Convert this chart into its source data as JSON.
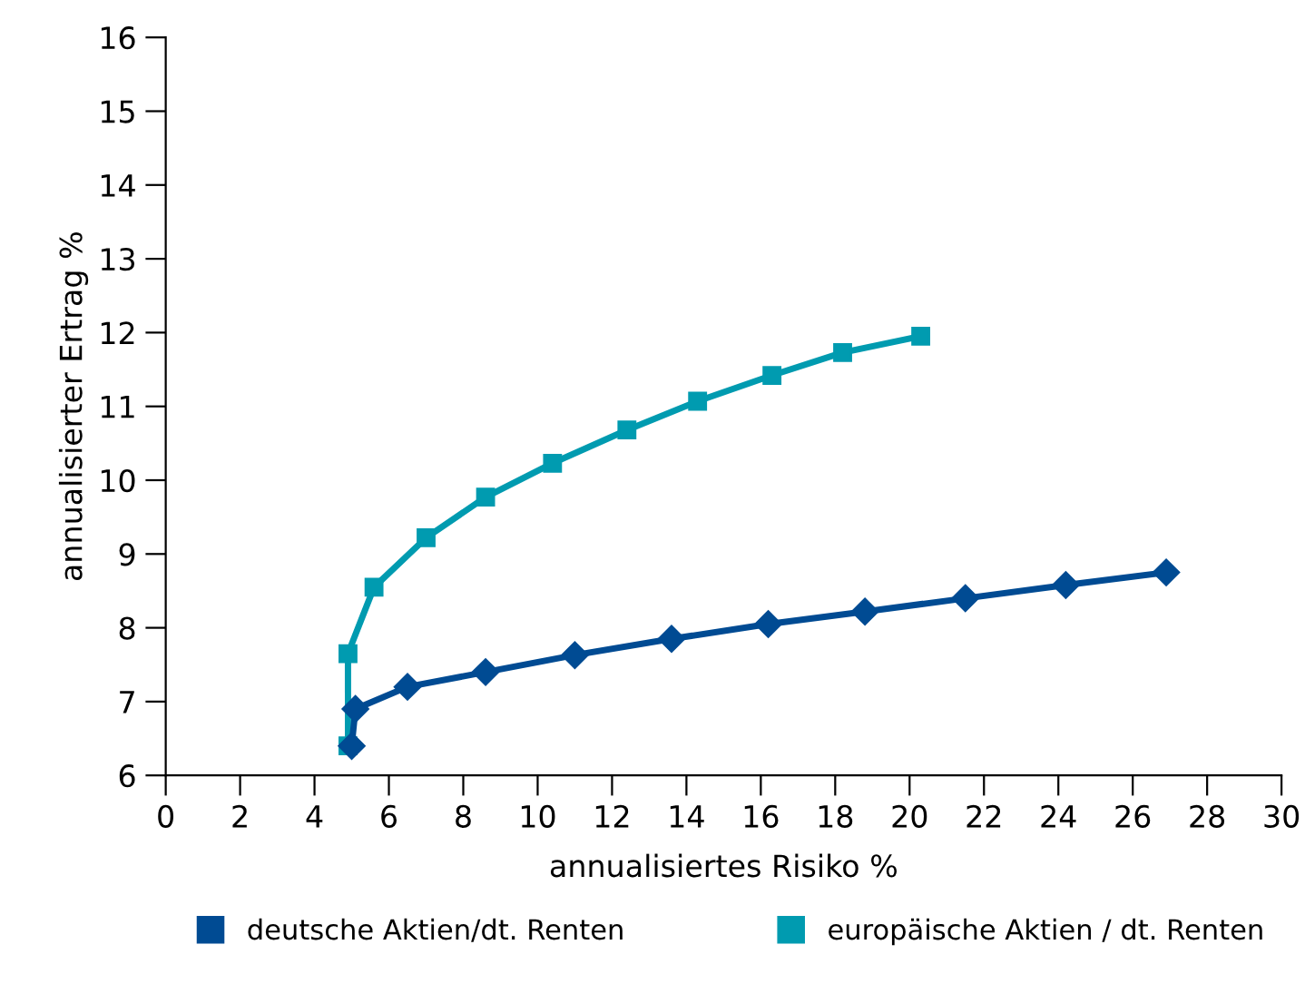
{
  "chart_data": {
    "type": "line",
    "xlabel": "annualisiertes Risiko %",
    "ylabel": "annualisierter Ertrag %",
    "xlim": [
      0,
      30
    ],
    "xticks": [
      0,
      2,
      4,
      6,
      8,
      10,
      12,
      14,
      16,
      18,
      20,
      22,
      24,
      26,
      28,
      30
    ],
    "ylim": [
      6,
      16
    ],
    "yticks": [
      6,
      7,
      8,
      9,
      10,
      11,
      12,
      13,
      14,
      15,
      16
    ],
    "grid": false,
    "legend": "bottom",
    "series": [
      {
        "name": "deutsche Aktien/dt. Renten",
        "color": "#004b93",
        "marker": "diamond",
        "x": [
          5.0,
          5.1,
          6.5,
          8.6,
          11.0,
          13.6,
          16.2,
          18.8,
          21.5,
          24.2,
          26.9
        ],
        "values": [
          6.4,
          6.9,
          7.2,
          7.4,
          7.63,
          7.85,
          8.05,
          8.22,
          8.4,
          8.58,
          8.75
        ]
      },
      {
        "name": "europäische Aktien / dt. Renten",
        "color": "#009bb0",
        "marker": "square",
        "x": [
          4.9,
          4.9,
          5.6,
          7.0,
          8.6,
          10.4,
          12.4,
          14.3,
          16.3,
          18.2,
          20.3
        ],
        "values": [
          6.4,
          7.65,
          8.55,
          9.22,
          9.77,
          10.23,
          10.68,
          11.07,
          11.42,
          11.73,
          11.95
        ]
      }
    ]
  }
}
